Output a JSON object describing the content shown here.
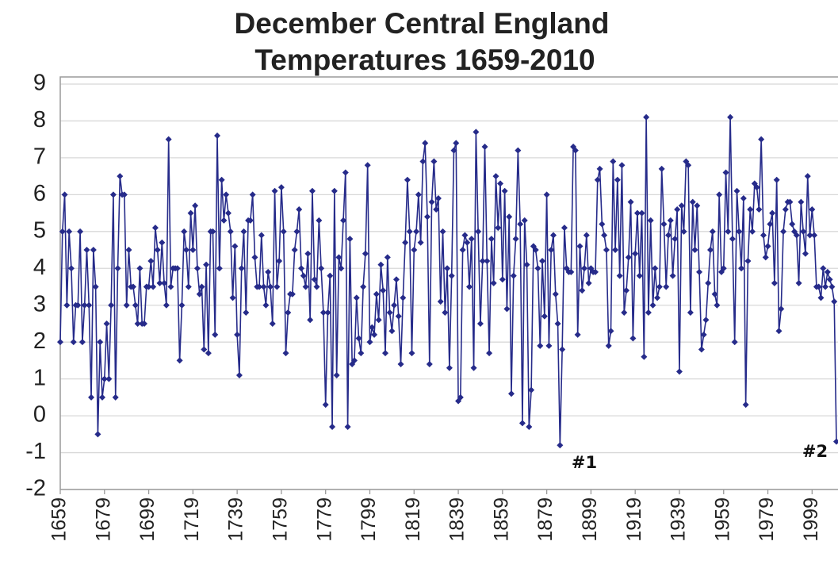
{
  "chart_data": {
    "type": "line",
    "title": [
      "December Central England",
      "Temperatures 1659-2010"
    ],
    "x": [
      1659,
      1660,
      1661,
      1662,
      1663,
      1664,
      1665,
      1666,
      1667,
      1668,
      1669,
      1670,
      1671,
      1672,
      1673,
      1674,
      1675,
      1676,
      1677,
      1678,
      1679,
      1680,
      1681,
      1682,
      1683,
      1684,
      1685,
      1686,
      1687,
      1688,
      1689,
      1690,
      1691,
      1692,
      1693,
      1694,
      1695,
      1696,
      1697,
      1698,
      1699,
      1700,
      1701,
      1702,
      1703,
      1704,
      1705,
      1706,
      1707,
      1708,
      1709,
      1710,
      1711,
      1712,
      1713,
      1714,
      1715,
      1716,
      1717,
      1718,
      1719,
      1720,
      1721,
      1722,
      1723,
      1724,
      1725,
      1726,
      1727,
      1728,
      1729,
      1730,
      1731,
      1732,
      1733,
      1734,
      1735,
      1736,
      1737,
      1738,
      1739,
      1740,
      1741,
      1742,
      1743,
      1744,
      1745,
      1746,
      1747,
      1748,
      1749,
      1750,
      1751,
      1752,
      1753,
      1754,
      1755,
      1756,
      1757,
      1758,
      1759,
      1760,
      1761,
      1762,
      1763,
      1764,
      1765,
      1766,
      1767,
      1768,
      1769,
      1770,
      1771,
      1772,
      1773,
      1774,
      1775,
      1776,
      1777,
      1778,
      1779,
      1780,
      1781,
      1782,
      1783,
      1784,
      1785,
      1786,
      1787,
      1788,
      1789,
      1790,
      1791,
      1792,
      1793,
      1794,
      1795,
      1796,
      1797,
      1798,
      1799,
      1800,
      1801,
      1802,
      1803,
      1804,
      1805,
      1806,
      1807,
      1808,
      1809,
      1810,
      1811,
      1812,
      1813,
      1814,
      1815,
      1816,
      1817,
      1818,
      1819,
      1820,
      1821,
      1822,
      1823,
      1824,
      1825,
      1826,
      1827,
      1828,
      1829,
      1830,
      1831,
      1832,
      1833,
      1834,
      1835,
      1836,
      1837,
      1838,
      1839,
      1840,
      1841,
      1842,
      1843,
      1844,
      1845,
      1846,
      1847,
      1848,
      1849,
      1850,
      1851,
      1852,
      1853,
      1854,
      1855,
      1856,
      1857,
      1858,
      1859,
      1860,
      1861,
      1862,
      1863,
      1864,
      1865,
      1866,
      1867,
      1868,
      1869,
      1870,
      1871,
      1872,
      1873,
      1874,
      1875,
      1876,
      1877,
      1878,
      1879,
      1880,
      1881,
      1882,
      1883,
      1884,
      1885,
      1886,
      1887,
      1888,
      1889,
      1890,
      1891,
      1892,
      1893,
      1894,
      1895,
      1896,
      1897,
      1898,
      1899,
      1900,
      1901,
      1902,
      1903,
      1904,
      1905,
      1906,
      1907,
      1908,
      1909,
      1910,
      1911,
      1912,
      1913,
      1914,
      1915,
      1916,
      1917,
      1918,
      1919,
      1920,
      1921,
      1922,
      1923,
      1924,
      1925,
      1926,
      1927,
      1928,
      1929,
      1930,
      1931,
      1932,
      1933,
      1934,
      1935,
      1936,
      1937,
      1938,
      1939,
      1940,
      1941,
      1942,
      1943,
      1944,
      1945,
      1946,
      1947,
      1948,
      1949,
      1950,
      1951,
      1952,
      1953,
      1954,
      1955,
      1956,
      1957,
      1958,
      1959,
      1960,
      1961,
      1962,
      1963,
      1964,
      1965,
      1966,
      1967,
      1968,
      1969,
      1970,
      1971,
      1972,
      1973,
      1974,
      1975,
      1976,
      1977,
      1978,
      1979,
      1980,
      1981,
      1982,
      1983,
      1984,
      1985,
      1986,
      1987,
      1988,
      1989,
      1990,
      1991,
      1992,
      1993,
      1994,
      1995,
      1996,
      1997,
      1998,
      1999,
      2000,
      2001,
      2002,
      2003,
      2004,
      2005,
      2006,
      2007,
      2008,
      2009,
      2010
    ],
    "series": [
      {
        "color": "#262b8a",
        "values": [
          2.0,
          5.0,
          6.0,
          3.0,
          5.0,
          4.0,
          2.0,
          3.0,
          3.0,
          5.0,
          2.0,
          3.0,
          4.5,
          3.0,
          0.5,
          4.5,
          3.5,
          -0.5,
          2.0,
          0.5,
          1.0,
          2.5,
          1.0,
          3.0,
          6.0,
          0.5,
          4.0,
          6.5,
          6.0,
          6.0,
          3.0,
          4.5,
          3.5,
          3.5,
          3.0,
          2.5,
          4.0,
          2.5,
          2.5,
          3.5,
          3.5,
          4.2,
          3.5,
          5.1,
          4.5,
          3.6,
          4.7,
          3.6,
          3.0,
          7.5,
          3.5,
          4.0,
          4.0,
          4.0,
          1.5,
          3.0,
          5.0,
          4.5,
          3.5,
          5.5,
          4.5,
          5.7,
          4.0,
          3.3,
          3.5,
          1.8,
          4.1,
          1.7,
          5.0,
          5.0,
          2.2,
          7.6,
          4.0,
          6.4,
          5.3,
          6.0,
          5.5,
          5.0,
          3.2,
          4.6,
          2.2,
          1.1,
          4.0,
          5.0,
          2.8,
          5.3,
          5.3,
          6.0,
          4.3,
          3.5,
          3.5,
          4.9,
          3.5,
          3.0,
          3.9,
          3.5,
          2.5,
          6.1,
          3.5,
          4.2,
          6.2,
          5.0,
          1.7,
          2.8,
          3.3,
          3.3,
          4.5,
          5.0,
          5.6,
          4.0,
          3.8,
          3.5,
          4.4,
          2.6,
          6.1,
          3.7,
          3.5,
          5.3,
          4.0,
          2.8,
          0.3,
          2.8,
          3.8,
          -0.3,
          6.1,
          1.1,
          4.3,
          4.0,
          5.3,
          6.6,
          -0.3,
          4.8,
          1.4,
          1.5,
          3.2,
          2.1,
          1.7,
          3.5,
          4.4,
          6.8,
          2.0,
          2.4,
          2.2,
          3.3,
          2.6,
          4.1,
          3.4,
          1.7,
          4.3,
          2.8,
          2.3,
          3.0,
          3.7,
          2.7,
          1.4,
          3.2,
          4.7,
          6.4,
          5.0,
          1.7,
          4.5,
          5.0,
          6.0,
          4.7,
          6.9,
          7.4,
          5.4,
          1.4,
          5.8,
          6.9,
          5.6,
          5.9,
          3.1,
          5.0,
          2.8,
          4.0,
          1.3,
          3.8,
          7.2,
          7.4,
          0.4,
          0.5,
          4.5,
          4.9,
          4.7,
          3.5,
          4.8,
          1.3,
          7.7,
          5.0,
          2.5,
          4.2,
          7.3,
          4.2,
          1.7,
          4.8,
          3.6,
          6.5,
          5.1,
          6.3,
          3.7,
          6.1,
          2.9,
          5.4,
          0.6,
          3.8,
          4.8,
          7.2,
          5.2,
          -0.2,
          5.3,
          4.1,
          -0.3,
          0.7,
          4.6,
          4.5,
          4.0,
          1.9,
          4.2,
          2.7,
          6.0,
          1.9,
          4.5,
          4.9,
          3.3,
          2.5,
          -0.8,
          1.8,
          5.1,
          4.0,
          3.9,
          3.9,
          7.3,
          7.2,
          2.2,
          4.6,
          3.4,
          4.0,
          4.9,
          3.6,
          4.0,
          3.9,
          3.9,
          6.4,
          6.7,
          5.2,
          4.9,
          4.5,
          1.9,
          2.3,
          6.9,
          4.5,
          6.4,
          3.8,
          6.8,
          2.8,
          3.4,
          4.3,
          5.8,
          2.1,
          4.4,
          5.5,
          3.8,
          5.5,
          1.6,
          8.1,
          2.8,
          5.3,
          3.0,
          4.0,
          3.2,
          3.5,
          6.7,
          5.2,
          3.5,
          4.9,
          5.3,
          3.8,
          4.8,
          5.6,
          1.2,
          5.7,
          5.0,
          6.9,
          6.8,
          2.8,
          5.8,
          4.5,
          5.7,
          3.9,
          1.8,
          2.2,
          2.6,
          3.6,
          4.5,
          5.0,
          3.3,
          3.0,
          6.0,
          3.9,
          4.0,
          6.6,
          5.0,
          8.1,
          4.8,
          2.0,
          6.1,
          5.0,
          4.0,
          5.9,
          0.3,
          4.2,
          5.6,
          5.0,
          6.3,
          6.2,
          5.6,
          7.5,
          4.9,
          4.3,
          4.6,
          5.2,
          5.5,
          3.6,
          6.4,
          2.3,
          2.9,
          5.0,
          5.6,
          5.8,
          5.8,
          5.2,
          5.0,
          4.9,
          3.6,
          5.8,
          5.0,
          4.4,
          6.5,
          4.9,
          5.6,
          4.9,
          3.5,
          3.5,
          3.2,
          4.0,
          3.5,
          3.9,
          3.7,
          3.5,
          3.1,
          -0.7
        ]
      }
    ],
    "xlim": [
      1659,
      2010
    ],
    "xticks": [
      1659,
      1679,
      1699,
      1719,
      1739,
      1759,
      1779,
      1799,
      1819,
      1839,
      1859,
      1879,
      1899,
      1919,
      1939,
      1959,
      1979,
      1999
    ],
    "ylim": [
      -2,
      9
    ],
    "yticks": [
      -2,
      -1,
      0,
      1,
      2,
      3,
      4,
      5,
      6,
      7,
      8,
      9
    ],
    "grid": true,
    "annotations": [
      "#1",
      "#2"
    ]
  }
}
